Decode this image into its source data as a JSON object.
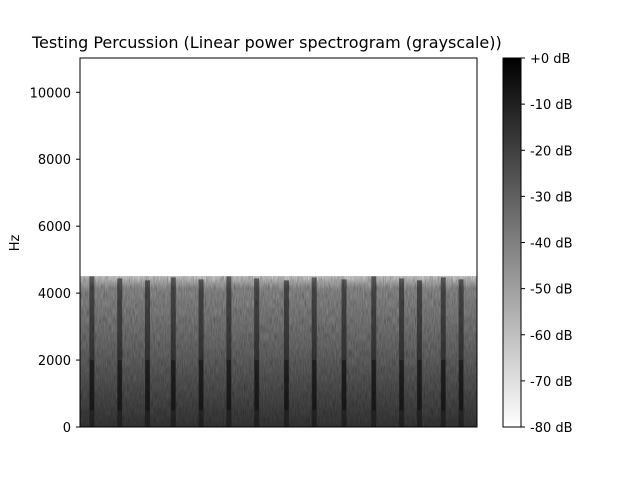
{
  "chart_data": {
    "type": "heatmap",
    "title": "Testing Percussion (Linear power spectrogram (grayscale))",
    "xlabel": "",
    "ylabel": "Hz",
    "ylim": [
      0,
      11025
    ],
    "yticks": [
      0,
      2000,
      4000,
      6000,
      8000,
      10000
    ],
    "colorbar": {
      "cmap": "gray_r",
      "range_db": [
        -80,
        0
      ],
      "ticks": [
        {
          "value": 0,
          "label": "+0 dB"
        },
        {
          "value": -10,
          "label": "-10 dB"
        },
        {
          "value": -20,
          "label": "-20 dB"
        },
        {
          "value": -30,
          "label": "-30 dB"
        },
        {
          "value": -40,
          "label": "-40 dB"
        },
        {
          "value": -50,
          "label": "-50 dB"
        },
        {
          "value": -60,
          "label": "-60 dB"
        },
        {
          "value": -70,
          "label": "-70 dB"
        },
        {
          "value": -80,
          "label": "-80 dB"
        }
      ]
    },
    "energy_band_top_hz": 4500,
    "onsets_fraction": [
      0.03,
      0.1,
      0.17,
      0.235,
      0.305,
      0.375,
      0.445,
      0.52,
      0.59,
      0.665,
      0.74,
      0.81,
      0.855,
      0.915,
      0.96
    ]
  }
}
